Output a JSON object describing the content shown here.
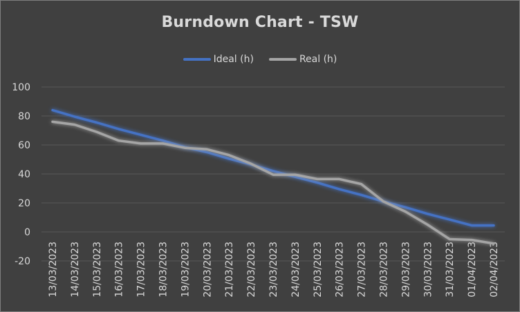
{
  "chart_data": {
    "type": "line",
    "title": "Burndown Chart - TSW",
    "xlabel": "",
    "ylabel": "",
    "ylim": [
      -20,
      100
    ],
    "yticks": [
      100,
      80,
      60,
      40,
      20,
      0,
      -20
    ],
    "grid": true,
    "legend_position": "top",
    "categories": [
      "13/03/2023",
      "14/03/2023",
      "15/03/2023",
      "16/03/2023",
      "17/03/2023",
      "18/03/2023",
      "19/03/2023",
      "20/03/2023",
      "21/03/2023",
      "22/03/2023",
      "23/03/2023",
      "24/03/2023",
      "25/03/2023",
      "26/03/2023",
      "27/03/2023",
      "28/03/2023",
      "29/03/2023",
      "30/03/2023",
      "31/03/2023",
      "01/04/2023",
      "02/04/2023"
    ],
    "series": [
      {
        "name": "Ideal (h)",
        "color": "#4472c4",
        "values": [
          84,
          79.5,
          75.5,
          71,
          67,
          63,
          58.5,
          55,
          50.5,
          46.5,
          42,
          38,
          34,
          29.5,
          25.5,
          21,
          17,
          12.5,
          8.5,
          4.5,
          4.5
        ]
      },
      {
        "name": "Real (h)",
        "color": "#a5a5a5",
        "values": [
          76,
          74,
          69,
          63,
          61,
          61,
          58,
          57,
          53,
          47,
          39.5,
          39.5,
          36.5,
          36.5,
          33,
          21,
          14,
          5,
          -5,
          -5.5,
          -8
        ]
      }
    ]
  }
}
